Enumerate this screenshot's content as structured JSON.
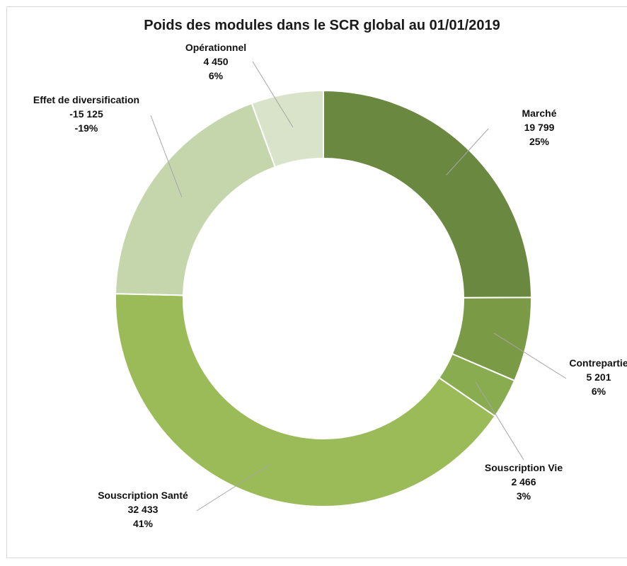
{
  "chart_data": {
    "type": "pie",
    "subtype": "donut",
    "title": "Poids des modules dans le SCR global au 01/01/2019",
    "slices": [
      {
        "label": "Marché",
        "value": 19799,
        "value_text": "19 799",
        "percent": 25,
        "percent_text": "25%",
        "color": "#6b8840"
      },
      {
        "label": "Contrepartie",
        "value": 5201,
        "value_text": "5 201",
        "percent": 6,
        "percent_text": "6%",
        "color": "#7b9a45"
      },
      {
        "label": "Souscription Vie",
        "value": 2466,
        "value_text": "2 466",
        "percent": 3,
        "percent_text": "3%",
        "color": "#8aac51"
      },
      {
        "label": "Souscription Santé",
        "value": 32433,
        "value_text": "32 433",
        "percent": 41,
        "percent_text": "41%",
        "color": "#9bbb59"
      },
      {
        "label": "Effet de diversification",
        "value": -15125,
        "value_text": "-15 125",
        "percent": -19,
        "percent_text": "-19%",
        "color": "#c5d6ac"
      },
      {
        "label": "Opérationnel",
        "value": 4450,
        "value_text": "4 450",
        "percent": 6,
        "percent_text": "6%",
        "color": "#d8e3c9"
      }
    ],
    "legend": "none",
    "data_labels": "outside with leader lines"
  }
}
